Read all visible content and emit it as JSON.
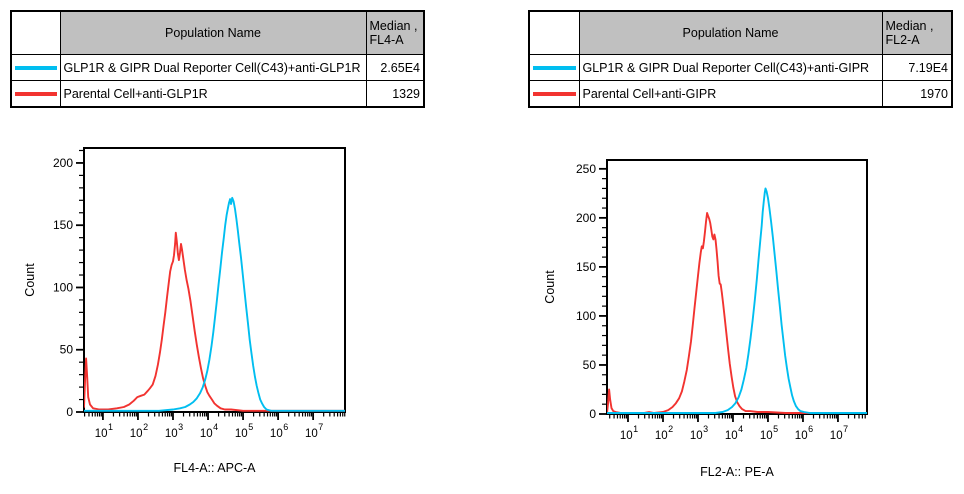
{
  "colors": {
    "cyan_series": "#00BEF0",
    "red_series": "#F23330",
    "table_header_bg": "#C0C0C0",
    "axis": "#000000",
    "background": "#FFFFFF"
  },
  "panels": [
    {
      "table": {
        "header_population": "Population Name",
        "header_median_line1": "Median ,",
        "header_median_line2": "FL4-A",
        "rows": [
          {
            "color": "#00BEF0",
            "name": "GLP1R & GIPR Dual Reporter Cell(C43)+anti-GLP1R",
            "median": "2.65E4"
          },
          {
            "color": "#F23330",
            "name": "Parental Cell+anti-GLP1R",
            "median": "1329"
          }
        ]
      }
    },
    {
      "table": {
        "header_population": "Population Name",
        "header_median_line1": "Median ,",
        "header_median_line2": "FL2-A",
        "rows": [
          {
            "color": "#00BEF0",
            "name": "GLP1R & GIPR Dual Reporter Cell(C43)+anti-GIPR",
            "median": "7.19E4"
          },
          {
            "color": "#F23330",
            "name": "Parental Cell+anti-GIPR",
            "median": "1970"
          }
        ]
      }
    }
  ],
  "chart_data": [
    {
      "type": "line",
      "title": "",
      "xlabel": "FL4-A:: APC-A",
      "ylabel": "Count",
      "x_scale": "log",
      "x_decade_ticks": [
        1,
        2,
        3,
        4,
        5,
        6,
        7
      ],
      "xlim_log": [
        0.46,
        7.91
      ],
      "ylim": [
        0,
        212
      ],
      "y_ticks": [
        0,
        50,
        100,
        150,
        200
      ],
      "y_minor_step": 10,
      "grid": false,
      "legend_position": "none",
      "series": [
        {
          "key": "parental",
          "name": "Parental Cell+anti-GLP1R",
          "color": "#F23330",
          "median": "1329",
          "points_logx_count": [
            [
              0.46,
              4
            ],
            [
              0.49,
              26
            ],
            [
              0.52,
              43
            ],
            [
              0.55,
              28
            ],
            [
              0.58,
              12
            ],
            [
              0.63,
              6
            ],
            [
              0.72,
              3
            ],
            [
              0.9,
              2
            ],
            [
              1.15,
              2
            ],
            [
              1.4,
              3
            ],
            [
              1.6,
              4
            ],
            [
              1.75,
              6
            ],
            [
              1.88,
              9
            ],
            [
              1.98,
              12
            ],
            [
              2.08,
              13
            ],
            [
              2.18,
              14
            ],
            [
              2.28,
              17
            ],
            [
              2.34,
              19
            ],
            [
              2.42,
              22
            ],
            [
              2.5,
              29
            ],
            [
              2.57,
              38
            ],
            [
              2.63,
              48
            ],
            [
              2.68,
              58
            ],
            [
              2.73,
              69
            ],
            [
              2.78,
              80
            ],
            [
              2.83,
              92
            ],
            [
              2.88,
              104
            ],
            [
              2.92,
              113
            ],
            [
              2.96,
              118
            ],
            [
              3.0,
              121
            ],
            [
              3.03,
              126
            ],
            [
              3.06,
              135
            ],
            [
              3.08,
              144
            ],
            [
              3.11,
              137
            ],
            [
              3.14,
              127
            ],
            [
              3.17,
              122
            ],
            [
              3.2,
              128
            ],
            [
              3.23,
              135
            ],
            [
              3.26,
              130
            ],
            [
              3.3,
              122
            ],
            [
              3.34,
              114
            ],
            [
              3.39,
              106
            ],
            [
              3.44,
              99
            ],
            [
              3.5,
              89
            ],
            [
              3.56,
              77
            ],
            [
              3.62,
              65
            ],
            [
              3.68,
              54
            ],
            [
              3.74,
              44
            ],
            [
              3.8,
              35
            ],
            [
              3.86,
              27
            ],
            [
              3.92,
              21
            ],
            [
              3.98,
              16
            ],
            [
              4.04,
              13
            ],
            [
              4.11,
              10
            ],
            [
              4.18,
              7
            ],
            [
              4.26,
              5
            ],
            [
              4.36,
              3
            ],
            [
              4.48,
              2
            ],
            [
              4.66,
              2
            ],
            [
              5.0,
              1
            ],
            [
              6.0,
              1
            ],
            [
              7.0,
              1
            ],
            [
              7.91,
              1
            ]
          ]
        },
        {
          "key": "dual-reporter",
          "name": "GLP1R & GIPR Dual Reporter Cell(C43)+anti-GLP1R",
          "color": "#00BEF0",
          "median": "2.65E4",
          "points_logx_count": [
            [
              0.46,
              1
            ],
            [
              1.2,
              1
            ],
            [
              2.0,
              1
            ],
            [
              2.6,
              1
            ],
            [
              3.0,
              2
            ],
            [
              3.2,
              3
            ],
            [
              3.35,
              4
            ],
            [
              3.48,
              6
            ],
            [
              3.58,
              8
            ],
            [
              3.68,
              11
            ],
            [
              3.77,
              15
            ],
            [
              3.85,
              20
            ],
            [
              3.92,
              26
            ],
            [
              3.98,
              33
            ],
            [
              4.04,
              42
            ],
            [
              4.1,
              53
            ],
            [
              4.15,
              64
            ],
            [
              4.2,
              76
            ],
            [
              4.25,
              89
            ],
            [
              4.3,
              102
            ],
            [
              4.35,
              115
            ],
            [
              4.4,
              128
            ],
            [
              4.45,
              140
            ],
            [
              4.49,
              150
            ],
            [
              4.53,
              158
            ],
            [
              4.57,
              164
            ],
            [
              4.6,
              168
            ],
            [
              4.63,
              171
            ],
            [
              4.66,
              167
            ],
            [
              4.69,
              172
            ],
            [
              4.73,
              169
            ],
            [
              4.77,
              163
            ],
            [
              4.81,
              155
            ],
            [
              4.85,
              146
            ],
            [
              4.89,
              136
            ],
            [
              4.94,
              124
            ],
            [
              4.99,
              111
            ],
            [
              5.04,
              97
            ],
            [
              5.09,
              84
            ],
            [
              5.14,
              71
            ],
            [
              5.19,
              58
            ],
            [
              5.24,
              47
            ],
            [
              5.29,
              37
            ],
            [
              5.34,
              28
            ],
            [
              5.39,
              21
            ],
            [
              5.44,
              15
            ],
            [
              5.49,
              10
            ],
            [
              5.54,
              7
            ],
            [
              5.6,
              4
            ],
            [
              5.67,
              2
            ],
            [
              5.8,
              1
            ],
            [
              6.4,
              1
            ],
            [
              7.0,
              1
            ],
            [
              7.91,
              1
            ]
          ]
        }
      ]
    },
    {
      "type": "line",
      "title": "",
      "xlabel": "FL2-A:: PE-A",
      "ylabel": "Count",
      "x_scale": "log",
      "x_decade_ticks": [
        1,
        2,
        3,
        4,
        5,
        6,
        7
      ],
      "xlim_log": [
        0.4,
        7.83
      ],
      "ylim": [
        0,
        259
      ],
      "y_ticks": [
        0,
        50,
        100,
        150,
        200,
        250
      ],
      "y_minor_step": 10,
      "grid": false,
      "legend_position": "none",
      "series": [
        {
          "key": "parental",
          "name": "Parental Cell+anti-GIPR",
          "color": "#F23330",
          "median": "1970",
          "points_logx_count": [
            [
              0.4,
              1
            ],
            [
              0.43,
              10
            ],
            [
              0.46,
              25
            ],
            [
              0.49,
              15
            ],
            [
              0.53,
              6
            ],
            [
              0.58,
              3
            ],
            [
              0.65,
              2
            ],
            [
              0.8,
              1
            ],
            [
              1.1,
              1
            ],
            [
              1.45,
              1
            ],
            [
              1.6,
              2
            ],
            [
              1.75,
              1
            ],
            [
              2.0,
              2
            ],
            [
              2.15,
              4
            ],
            [
              2.27,
              7
            ],
            [
              2.37,
              11
            ],
            [
              2.46,
              16
            ],
            [
              2.54,
              23
            ],
            [
              2.61,
              33
            ],
            [
              2.68,
              45
            ],
            [
              2.74,
              59
            ],
            [
              2.8,
              74
            ],
            [
              2.85,
              90
            ],
            [
              2.9,
              108
            ],
            [
              2.95,
              124
            ],
            [
              3.0,
              141
            ],
            [
              3.04,
              154
            ],
            [
              3.08,
              165
            ],
            [
              3.11,
              171
            ],
            [
              3.14,
              169
            ],
            [
              3.17,
              176
            ],
            [
              3.2,
              186
            ],
            [
              3.23,
              196
            ],
            [
              3.26,
              205
            ],
            [
              3.29,
              202
            ],
            [
              3.32,
              199
            ],
            [
              3.35,
              195
            ],
            [
              3.38,
              188
            ],
            [
              3.41,
              181
            ],
            [
              3.44,
              178
            ],
            [
              3.47,
              183
            ],
            [
              3.5,
              178
            ],
            [
              3.53,
              168
            ],
            [
              3.56,
              155
            ],
            [
              3.59,
              141
            ],
            [
              3.62,
              133
            ],
            [
              3.65,
              132
            ],
            [
              3.68,
              124
            ],
            [
              3.72,
              112
            ],
            [
              3.76,
              99
            ],
            [
              3.81,
              83
            ],
            [
              3.86,
              66
            ],
            [
              3.91,
              51
            ],
            [
              3.96,
              38
            ],
            [
              4.01,
              27
            ],
            [
              4.06,
              18
            ],
            [
              4.12,
              12
            ],
            [
              4.19,
              8
            ],
            [
              4.26,
              5
            ],
            [
              4.36,
              3
            ],
            [
              4.49,
              3
            ],
            [
              4.7,
              2
            ],
            [
              5.0,
              2
            ],
            [
              5.5,
              1
            ],
            [
              6.2,
              1
            ],
            [
              7.0,
              1
            ],
            [
              7.83,
              1
            ]
          ]
        },
        {
          "key": "dual-reporter",
          "name": "GLP1R & GIPR Dual Reporter Cell(C43)+anti-GIPR",
          "color": "#00BEF0",
          "median": "7.19E4",
          "points_logx_count": [
            [
              0.4,
              1
            ],
            [
              1.0,
              1
            ],
            [
              2.0,
              1
            ],
            [
              3.0,
              1
            ],
            [
              3.5,
              1
            ],
            [
              3.7,
              2
            ],
            [
              3.85,
              4
            ],
            [
              3.97,
              7
            ],
            [
              4.07,
              11
            ],
            [
              4.16,
              17
            ],
            [
              4.24,
              25
            ],
            [
              4.31,
              35
            ],
            [
              4.38,
              47
            ],
            [
              4.44,
              61
            ],
            [
              4.5,
              77
            ],
            [
              4.56,
              95
            ],
            [
              4.62,
              115
            ],
            [
              4.68,
              137
            ],
            [
              4.73,
              157
            ],
            [
              4.78,
              177
            ],
            [
              4.82,
              192
            ],
            [
              4.85,
              206
            ],
            [
              4.88,
              217
            ],
            [
              4.91,
              226
            ],
            [
              4.93,
              230
            ],
            [
              4.96,
              227
            ],
            [
              5.0,
              220
            ],
            [
              5.04,
              210
            ],
            [
              5.09,
              196
            ],
            [
              5.14,
              180
            ],
            [
              5.19,
              163
            ],
            [
              5.24,
              145
            ],
            [
              5.29,
              127
            ],
            [
              5.34,
              109
            ],
            [
              5.39,
              91
            ],
            [
              5.44,
              75
            ],
            [
              5.49,
              60
            ],
            [
              5.54,
              47
            ],
            [
              5.59,
              36
            ],
            [
              5.64,
              27
            ],
            [
              5.69,
              19
            ],
            [
              5.74,
              13
            ],
            [
              5.8,
              8
            ],
            [
              5.86,
              5
            ],
            [
              5.93,
              3
            ],
            [
              6.03,
              2
            ],
            [
              6.2,
              1
            ],
            [
              7.0,
              1
            ],
            [
              7.83,
              1
            ]
          ]
        }
      ]
    }
  ]
}
